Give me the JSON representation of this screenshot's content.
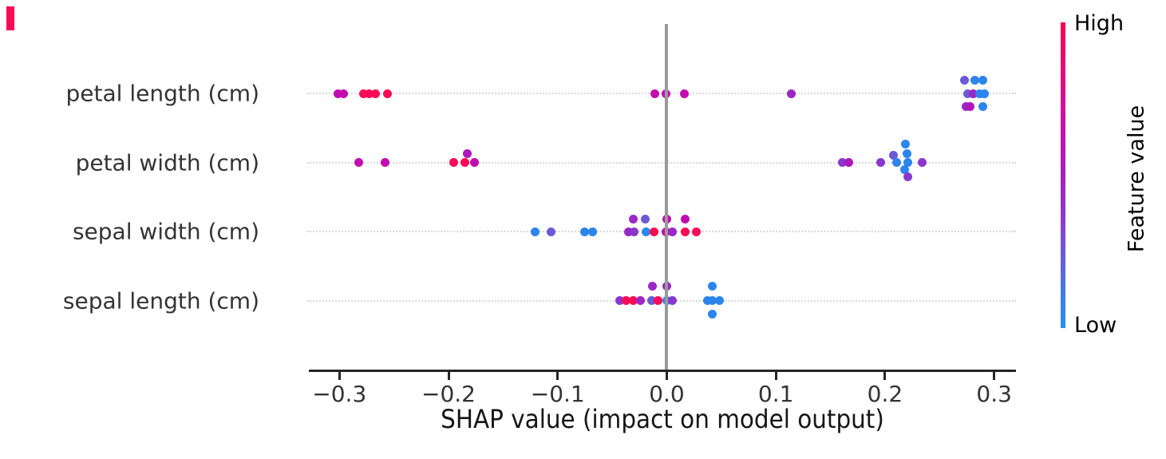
{
  "chart_data": {
    "type": "scatter",
    "title": "",
    "xlabel": "SHAP value (impact on model output)",
    "ylabel": "",
    "x_tick_labels": [
      "−0.3",
      "−0.2",
      "−0.1",
      "0.0",
      "0.1",
      "0.2",
      "0.3"
    ],
    "x_tick_values": [
      -0.3,
      -0.2,
      -0.1,
      0.0,
      0.1,
      0.2,
      0.3
    ],
    "xlim": [
      -0.328,
      0.32
    ],
    "grid": "dotted-horizontal-row-guides",
    "zero_line_color": "#9a9a9a",
    "legend_position": "right-colorbar",
    "palette": {
      "red": "#fb0a55",
      "magenta": "#c30cb0",
      "magpurple": "#ad17bb",
      "purple": "#9a27c6",
      "violet": "#8739cd",
      "slate": "#6a5ad5",
      "blue": "#2b85ec"
    },
    "colorbar": {
      "high_label": "High",
      "low_label": "Low",
      "axis_label": "Feature value",
      "high_color": "#ff0d57",
      "low_color": "#1e88e5",
      "gradient_top_to_bottom": [
        "#fb024e",
        "#ea0775",
        "#d30d9a",
        "#b815b4",
        "#9a2cc6",
        "#7a4dd3",
        "#4a73e6",
        "#2292f5"
      ]
    },
    "features": [
      {
        "label": "petal length (cm)",
        "points": [
          {
            "v": -0.301,
            "c": "magenta"
          },
          {
            "v": -0.296,
            "c": "magenta"
          },
          {
            "v": -0.278,
            "c": "red"
          },
          {
            "v": -0.273,
            "c": "red"
          },
          {
            "v": -0.267,
            "c": "red"
          },
          {
            "v": -0.256,
            "c": "red"
          },
          {
            "v": -0.011,
            "c": "magenta"
          },
          {
            "v": -0.001,
            "c": "magenta"
          },
          {
            "v": 0.016,
            "c": "magenta"
          },
          {
            "v": 0.114,
            "c": "purple"
          },
          {
            "v": 0.273,
            "c": "slate",
            "dy": -17
          },
          {
            "v": 0.282,
            "c": "blue",
            "dy": -17
          },
          {
            "v": 0.29,
            "c": "blue",
            "dy": -17
          },
          {
            "v": 0.276,
            "c": "slate"
          },
          {
            "v": 0.281,
            "c": "purple"
          },
          {
            "v": 0.287,
            "c": "blue"
          },
          {
            "v": 0.291,
            "c": "blue"
          },
          {
            "v": 0.274,
            "c": "purple",
            "dy": 16
          },
          {
            "v": 0.278,
            "c": "magpurple",
            "dy": 16
          },
          {
            "v": 0.29,
            "c": "blue",
            "dy": 16
          }
        ]
      },
      {
        "label": "petal width (cm)",
        "points": [
          {
            "v": -0.282,
            "c": "magenta"
          },
          {
            "v": -0.258,
            "c": "magenta"
          },
          {
            "v": -0.195,
            "c": "red"
          },
          {
            "v": -0.185,
            "c": "red"
          },
          {
            "v": -0.183,
            "c": "magpurple",
            "dy": -11
          },
          {
            "v": -0.176,
            "c": "magenta"
          },
          {
            "v": 0.161,
            "c": "violet"
          },
          {
            "v": 0.167,
            "c": "magpurple"
          },
          {
            "v": 0.196,
            "c": "violet"
          },
          {
            "v": 0.208,
            "c": "slate",
            "dy": -9
          },
          {
            "v": 0.211,
            "c": "blue"
          },
          {
            "v": 0.219,
            "c": "blue",
            "dy": -23
          },
          {
            "v": 0.22,
            "c": "blue",
            "dy": -11
          },
          {
            "v": 0.221,
            "c": "blue"
          },
          {
            "v": 0.218,
            "c": "blue",
            "dy": 9
          },
          {
            "v": 0.221,
            "c": "violet",
            "dy": 18
          },
          {
            "v": 0.234,
            "c": "violet"
          }
        ]
      },
      {
        "label": "sepal width (cm)",
        "points": [
          {
            "v": -0.121,
            "c": "blue"
          },
          {
            "v": -0.106,
            "c": "slate"
          },
          {
            "v": -0.075,
            "c": "blue"
          },
          {
            "v": -0.068,
            "c": "blue"
          },
          {
            "v": -0.035,
            "c": "purple"
          },
          {
            "v": -0.031,
            "c": "purple",
            "dy": -16
          },
          {
            "v": -0.03,
            "c": "violet"
          },
          {
            "v": -0.02,
            "c": "slate",
            "dy": -16
          },
          {
            "v": -0.019,
            "c": "blue"
          },
          {
            "v": -0.012,
            "c": "red"
          },
          {
            "v": 0.0,
            "c": "magenta",
            "dy": -16
          },
          {
            "v": -0.001,
            "c": "magenta"
          },
          {
            "v": 0.005,
            "c": "purple"
          },
          {
            "v": 0.017,
            "c": "magenta",
            "dy": -16
          },
          {
            "v": 0.017,
            "c": "red"
          },
          {
            "v": 0.027,
            "c": "red"
          }
        ]
      },
      {
        "label": "sepal length (cm)",
        "points": [
          {
            "v": -0.043,
            "c": "violet"
          },
          {
            "v": -0.037,
            "c": "red"
          },
          {
            "v": -0.031,
            "c": "red"
          },
          {
            "v": -0.024,
            "c": "purple"
          },
          {
            "v": -0.014,
            "c": "slate"
          },
          {
            "v": -0.013,
            "c": "purple",
            "dy": -18
          },
          {
            "v": -0.008,
            "c": "red"
          },
          {
            "v": 0.0,
            "c": "purple",
            "dy": -18
          },
          {
            "v": 0.0,
            "c": "blue"
          },
          {
            "v": 0.005,
            "c": "violet"
          },
          {
            "v": 0.037,
            "c": "blue"
          },
          {
            "v": 0.042,
            "c": "blue",
            "dy": -18
          },
          {
            "v": 0.042,
            "c": "blue"
          },
          {
            "v": 0.048,
            "c": "blue"
          },
          {
            "v": 0.042,
            "c": "blue",
            "dy": 17
          }
        ]
      }
    ],
    "stray_marker_color": "#fb0a55"
  }
}
